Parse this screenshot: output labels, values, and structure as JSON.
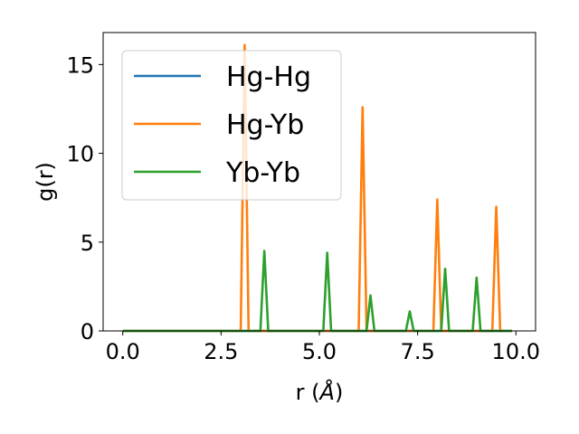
{
  "chart_data": {
    "type": "line",
    "xlabel": "r (",
    "xlabel_unit": "Å",
    "xlabel_close": ")",
    "ylabel": "g(r)",
    "xlim": [
      -0.5,
      10.5
    ],
    "ylim": [
      0,
      16.8
    ],
    "xticks": [
      0.0,
      2.5,
      5.0,
      7.5,
      10.0
    ],
    "xtick_labels": [
      "0.0",
      "2.5",
      "5.0",
      "7.5",
      "10.0"
    ],
    "yticks": [
      0,
      5,
      10,
      15
    ],
    "ytick_labels": [
      "0",
      "5",
      "10",
      "15"
    ],
    "grid": false,
    "legend_position": "top-left",
    "x_range": [
      0.0,
      9.9
    ],
    "peak_half_width": 0.1,
    "series": [
      {
        "name": "Hg-Hg",
        "color": "#1f77b4",
        "peaks": []
      },
      {
        "name": "Hg-Yb",
        "color": "#ff7f0e",
        "peaks": [
          {
            "x": 3.1,
            "y": 16.1
          },
          {
            "x": 6.1,
            "y": 12.6
          },
          {
            "x": 8.0,
            "y": 7.4
          },
          {
            "x": 9.5,
            "y": 7.0
          }
        ]
      },
      {
        "name": "Yb-Yb",
        "color": "#2ca02c",
        "peaks": [
          {
            "x": 3.6,
            "y": 4.5
          },
          {
            "x": 5.2,
            "y": 4.4
          },
          {
            "x": 6.3,
            "y": 2.0
          },
          {
            "x": 7.3,
            "y": 1.1
          },
          {
            "x": 8.2,
            "y": 3.5
          },
          {
            "x": 9.0,
            "y": 3.0
          }
        ]
      }
    ]
  }
}
